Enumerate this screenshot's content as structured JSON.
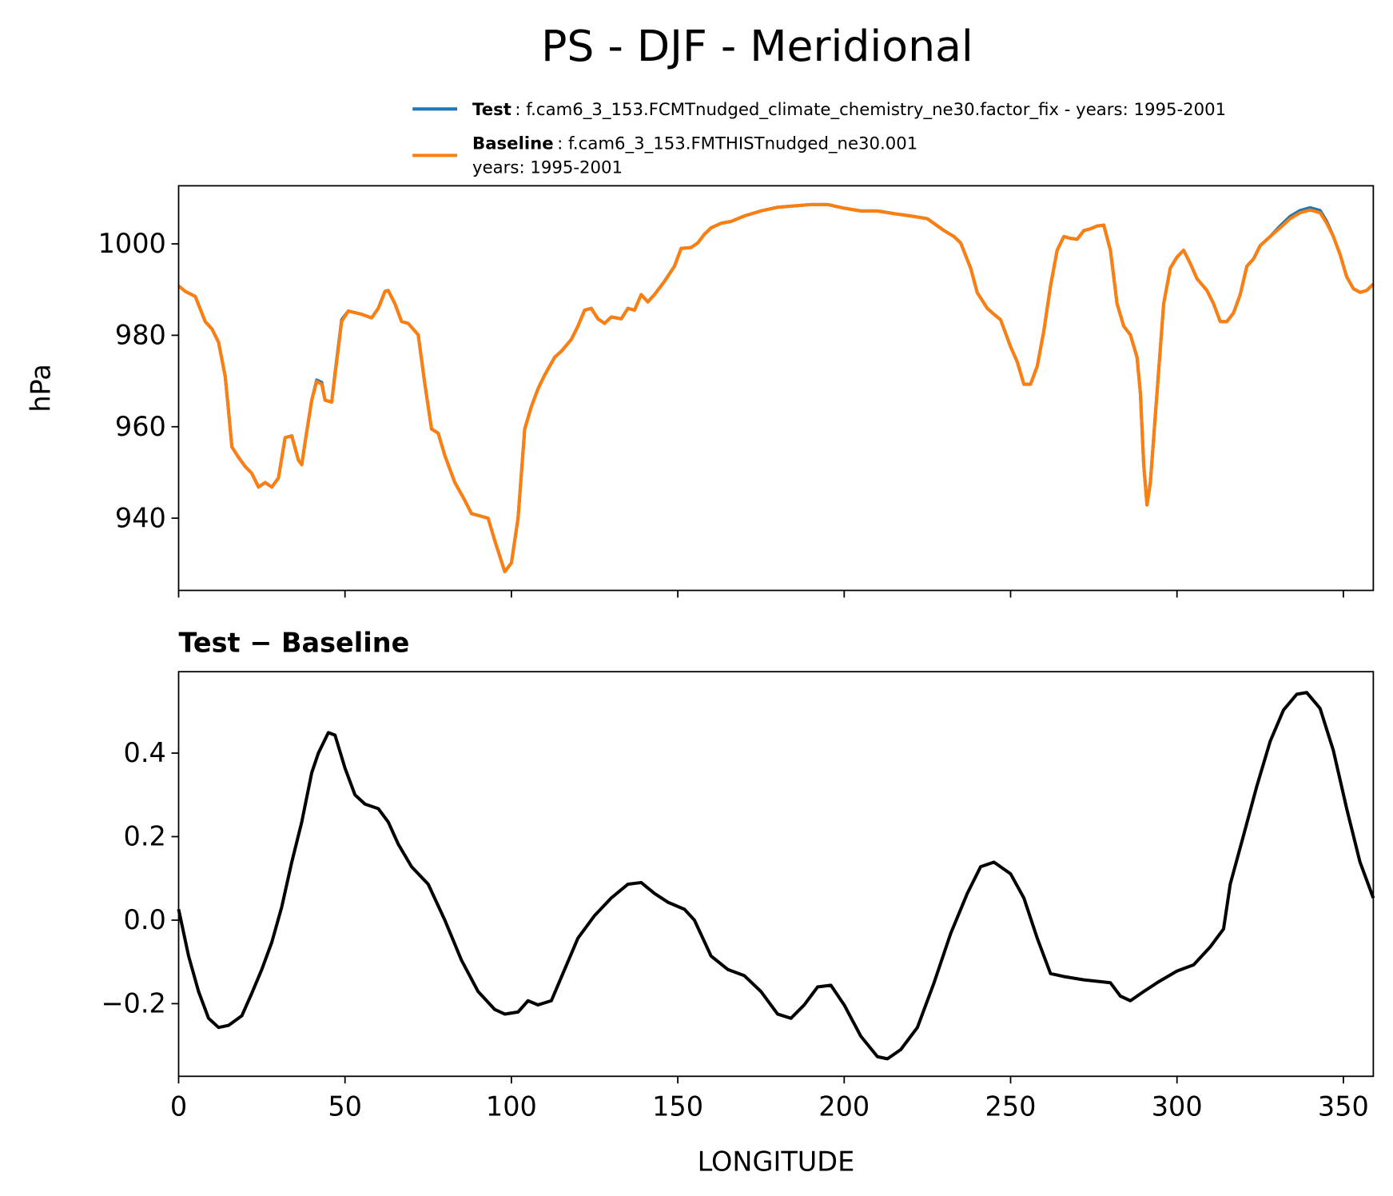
{
  "chart_data": [
    {
      "type": "line",
      "title": "PS - DJF - Meridional",
      "ylabel": "hPa",
      "legend": "above",
      "x": [
        0,
        2,
        5,
        8,
        10,
        12,
        14,
        15,
        16,
        18,
        20,
        22,
        24,
        26,
        28,
        30,
        32,
        34,
        36,
        37,
        38,
        40,
        41.5,
        43,
        44,
        46,
        47,
        49,
        51,
        55,
        58,
        60,
        62,
        63,
        65,
        67,
        69,
        72,
        74,
        76,
        78,
        80,
        83,
        86,
        88,
        90,
        93,
        95,
        98,
        100,
        102,
        104,
        106,
        108,
        110,
        113,
        115,
        118,
        120,
        122,
        124,
        126,
        128,
        130,
        133,
        135,
        137,
        139,
        141,
        143,
        146,
        149,
        151,
        154,
        156,
        158,
        160,
        163,
        166,
        170,
        175,
        180,
        190,
        195,
        200,
        205,
        210,
        215,
        220,
        225,
        230,
        233,
        235,
        238,
        240,
        243,
        245,
        247,
        250,
        252,
        254,
        256,
        258,
        260,
        262,
        264,
        266,
        268,
        270,
        272,
        274,
        276,
        278,
        280,
        282,
        284,
        286,
        288,
        289,
        290,
        291,
        292,
        294,
        296,
        298,
        300,
        302,
        304,
        306,
        309,
        311,
        313,
        315,
        317,
        319,
        321,
        323,
        325,
        328,
        331,
        334,
        337,
        340,
        343,
        345,
        347,
        349,
        351,
        353,
        355,
        357,
        359
      ],
      "series": [
        {
          "name": "Test",
          "description": [
            ": f.cam6_3_153.FCMTnudged_climate_chemistry_ne30.factor_fix - years: 1995-2001"
          ],
          "color": "#1f77b4",
          "values": [
            990.8,
            989.6,
            988.5,
            983,
            981.4,
            978.5,
            971,
            963.5,
            955.6,
            953.3,
            951.3,
            949.8,
            946.8,
            947.8,
            946.8,
            948.8,
            957.6,
            958,
            952.7,
            951.7,
            956.6,
            965.8,
            970.2,
            969.7,
            965.8,
            965.4,
            971.7,
            983.4,
            985.3,
            984.6,
            983.8,
            985.9,
            989.6,
            989.8,
            986.9,
            983,
            982.6,
            980.1,
            969.3,
            959.5,
            958.6,
            953.7,
            947.8,
            943.9,
            941,
            940.6,
            940,
            935.1,
            928.3,
            930.2,
            940,
            959.5,
            964.4,
            968.3,
            971.3,
            975.2,
            976.5,
            979.1,
            982,
            985.5,
            985.9,
            983.6,
            982.6,
            984,
            983.6,
            985.9,
            985.5,
            988.9,
            987.3,
            988.9,
            991.8,
            995.1,
            999,
            999.2,
            1000.2,
            1002.1,
            1003.5,
            1004.5,
            1004.9,
            1006.1,
            1007.2,
            1008,
            1008.6,
            1008.6,
            1007.8,
            1007.2,
            1007.2,
            1006.6,
            1006.1,
            1005.5,
            1002.9,
            1001.6,
            1000.2,
            994.7,
            989.3,
            985.9,
            984.6,
            983.4,
            977.5,
            974.2,
            969.3,
            969.3,
            973.2,
            981,
            990.8,
            998.6,
            1001.6,
            1001.2,
            1001,
            1002.9,
            1003.3,
            1003.9,
            1004.1,
            998.6,
            986.9,
            982,
            980.1,
            975.2,
            967.4,
            951.7,
            942.9,
            947.8,
            967.4,
            986.9,
            994.7,
            997.1,
            998.6,
            995.7,
            992.4,
            989.8,
            986.9,
            983,
            983,
            984.9,
            988.9,
            995.1,
            996.7,
            999.6,
            1001.6,
            1003.9,
            1006,
            1007.3,
            1007.9,
            1007.3,
            1004.9,
            1001.6,
            997.7,
            992.8,
            990.2,
            989.4,
            989.8,
            991.2
          ]
        },
        {
          "name": "Baseline",
          "description": [
            ": f.cam6_3_153.FMTHISTnudged_ne30.001",
            "years: 1995-2001"
          ],
          "color": "#ff7f0e",
          "values": [
            990.8,
            989.6,
            988.5,
            983,
            981.4,
            978.5,
            971,
            963.5,
            955.6,
            953.3,
            951.3,
            949.8,
            946.8,
            947.8,
            946.8,
            948.8,
            957.6,
            958,
            952.7,
            951.7,
            956.6,
            965.8,
            969.9,
            969.3,
            965.8,
            965.4,
            971.3,
            983,
            985.3,
            984.6,
            983.8,
            985.9,
            989.6,
            989.8,
            986.9,
            983,
            982.6,
            980.1,
            969.3,
            959.5,
            958.6,
            953.7,
            947.8,
            943.9,
            941,
            940.6,
            940,
            935.1,
            928.3,
            930.2,
            940,
            959.5,
            964.4,
            968.3,
            971.3,
            975.2,
            976.5,
            979.1,
            982,
            985.5,
            985.9,
            983.6,
            982.6,
            984,
            983.6,
            985.9,
            985.5,
            988.9,
            987.3,
            988.9,
            991.8,
            995.1,
            999,
            999.2,
            1000.2,
            1002.1,
            1003.5,
            1004.5,
            1004.9,
            1006.1,
            1007.2,
            1008,
            1008.6,
            1008.6,
            1007.8,
            1007.2,
            1007.2,
            1006.6,
            1006.1,
            1005.5,
            1002.9,
            1001.6,
            1000.2,
            994.7,
            989.3,
            985.9,
            984.6,
            983.4,
            977.5,
            974.2,
            969.3,
            969.3,
            973.2,
            981,
            990.8,
            998.6,
            1001.6,
            1001.2,
            1001,
            1002.9,
            1003.3,
            1003.9,
            1004.1,
            998.6,
            986.9,
            982,
            980.1,
            975.2,
            967.4,
            951.7,
            942.9,
            947.8,
            967.4,
            986.9,
            994.7,
            997.1,
            998.6,
            995.7,
            992.4,
            989.8,
            986.9,
            983,
            983,
            984.9,
            988.9,
            995.1,
            996.7,
            999.6,
            1001.6,
            1003.5,
            1005.5,
            1006.8,
            1007.4,
            1006.8,
            1004.5,
            1001.6,
            997.7,
            992.8,
            990.2,
            989.4,
            989.8,
            991.2
          ]
        }
      ],
      "xlim": [
        0,
        359
      ],
      "xticks": [
        0,
        50,
        100,
        150,
        200,
        250,
        300,
        350
      ],
      "ylim": [
        924.2,
        1012.7
      ],
      "yticks": [
        940,
        960,
        980,
        1000
      ]
    },
    {
      "type": "line",
      "title": "Test − Baseline",
      "xlabel": "LONGITUDE",
      "x": [
        0,
        3,
        6,
        9,
        12,
        15,
        19,
        22,
        25,
        28,
        31,
        34,
        37,
        40,
        42,
        45,
        47,
        50,
        53,
        56,
        60,
        63,
        66,
        70,
        75,
        80,
        85,
        90,
        95,
        98,
        102,
        105,
        108,
        112,
        116,
        120,
        125,
        130,
        135,
        139,
        143,
        147,
        152,
        155,
        160,
        165,
        170,
        175,
        180,
        184,
        188,
        192,
        196,
        200,
        205,
        210,
        213,
        217,
        222,
        227,
        232,
        237,
        241,
        245,
        250,
        254,
        258,
        262,
        266,
        272,
        280,
        283,
        286,
        290,
        294,
        300,
        305,
        310,
        314,
        316,
        320,
        324,
        328,
        332,
        336,
        339,
        343,
        347,
        351,
        355,
        359
      ],
      "series": [
        {
          "color": "#000000",
          "values": [
            0.026,
            -0.086,
            -0.171,
            -0.235,
            -0.257,
            -0.252,
            -0.229,
            -0.175,
            -0.118,
            -0.053,
            0.032,
            0.139,
            0.235,
            0.353,
            0.4,
            0.449,
            0.443,
            0.364,
            0.3,
            0.278,
            0.267,
            0.235,
            0.182,
            0.128,
            0.086,
            0,
            -0.096,
            -0.171,
            -0.214,
            -0.225,
            -0.22,
            -0.193,
            -0.203,
            -0.193,
            -0.118,
            -0.043,
            0.011,
            0.053,
            0.086,
            0.09,
            0.064,
            0.043,
            0.026,
            0,
            -0.086,
            -0.118,
            -0.133,
            -0.171,
            -0.225,
            -0.235,
            -0.203,
            -0.16,
            -0.156,
            -0.203,
            -0.278,
            -0.327,
            -0.332,
            -0.31,
            -0.257,
            -0.15,
            -0.032,
            0.064,
            0.128,
            0.139,
            0.111,
            0.053,
            -0.043,
            -0.128,
            -0.135,
            -0.143,
            -0.15,
            -0.182,
            -0.193,
            -0.171,
            -0.15,
            -0.122,
            -0.107,
            -0.064,
            -0.021,
            0.086,
            0.203,
            0.321,
            0.428,
            0.503,
            0.541,
            0.545,
            0.507,
            0.406,
            0.267,
            0.139,
            0.053
          ]
        }
      ],
      "xlim": [
        0,
        359
      ],
      "xticks": [
        0,
        50,
        100,
        150,
        200,
        250,
        300,
        350
      ],
      "ylim": [
        -0.374,
        0.595
      ],
      "yticks": [
        {
          "value": -0.2,
          "label": "−0.2"
        },
        {
          "value": 0,
          "label": "0.0"
        },
        0.2,
        0.4
      ]
    }
  ]
}
